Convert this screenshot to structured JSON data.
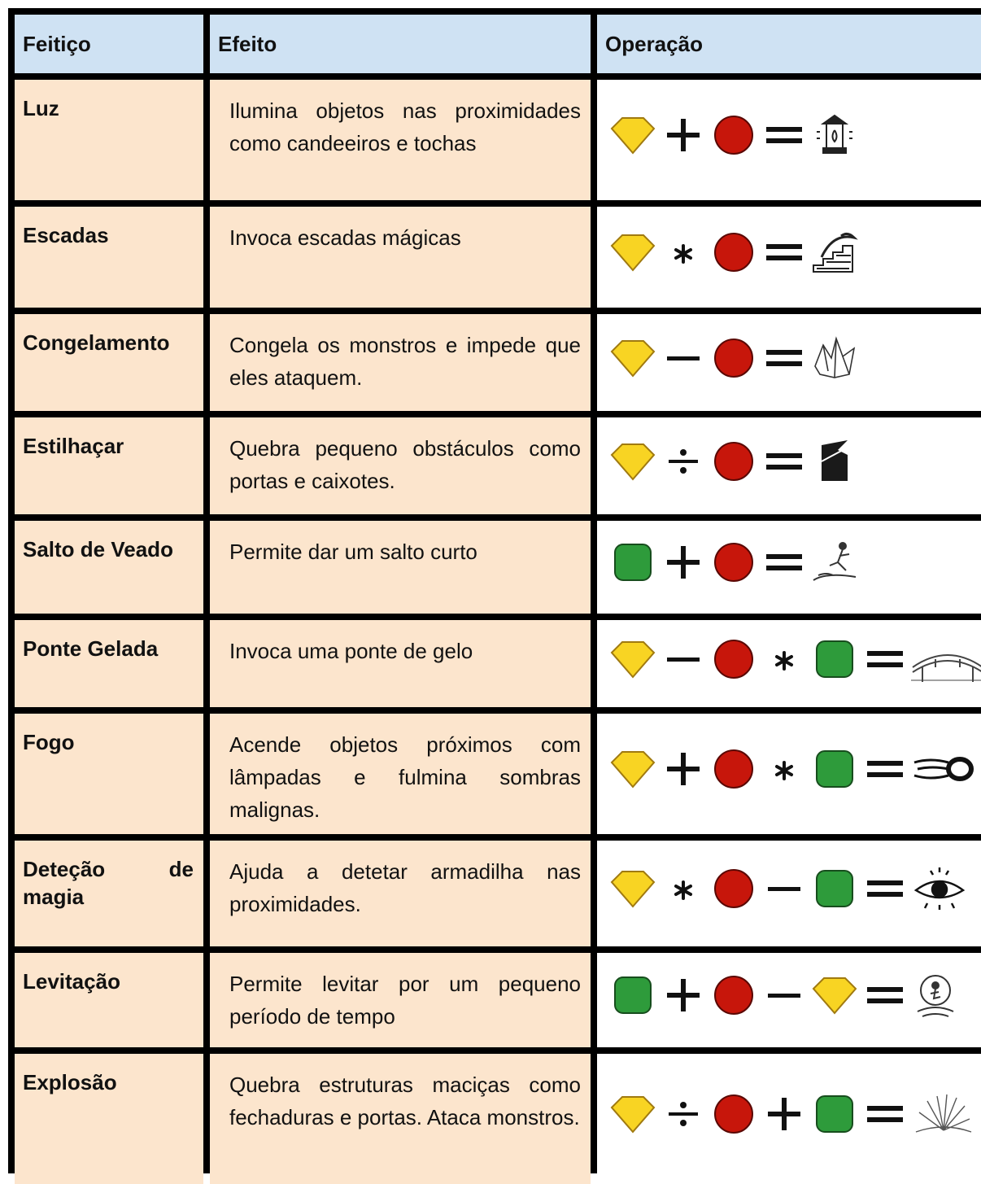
{
  "table": {
    "header": [
      "Feitiço",
      "Efeito",
      "Operação"
    ],
    "rows": [
      [
        "Luz",
        "Ilumina objetos nas proximidades como candeeiros e tochas"
      ],
      [
        "Escadas",
        "Invoca escadas mágicas"
      ],
      [
        "Congelamento",
        "Congela os monstros e impede que eles ataquem."
      ],
      [
        "Estilhaçar",
        "Quebra pequeno obstáculos como portas e caixotes."
      ],
      [
        "Salto de Veado",
        "Permite dar um salto curto"
      ],
      [
        "Ponte Gelada",
        "Invoca uma ponte de gelo"
      ],
      [
        "Fogo",
        "Acende objetos próximos com lâmpadas e fulmina sombras malignas."
      ],
      [
        "Deteção de magia",
        "Ajuda a detetar armadilha nas proximidades."
      ],
      [
        "Levitação",
        "Permite levitar por um pequeno período de tempo"
      ],
      [
        "Explosão",
        "Quebra estruturas maciças como fechaduras e portas. Ataca monstros."
      ]
    ]
  }
}
